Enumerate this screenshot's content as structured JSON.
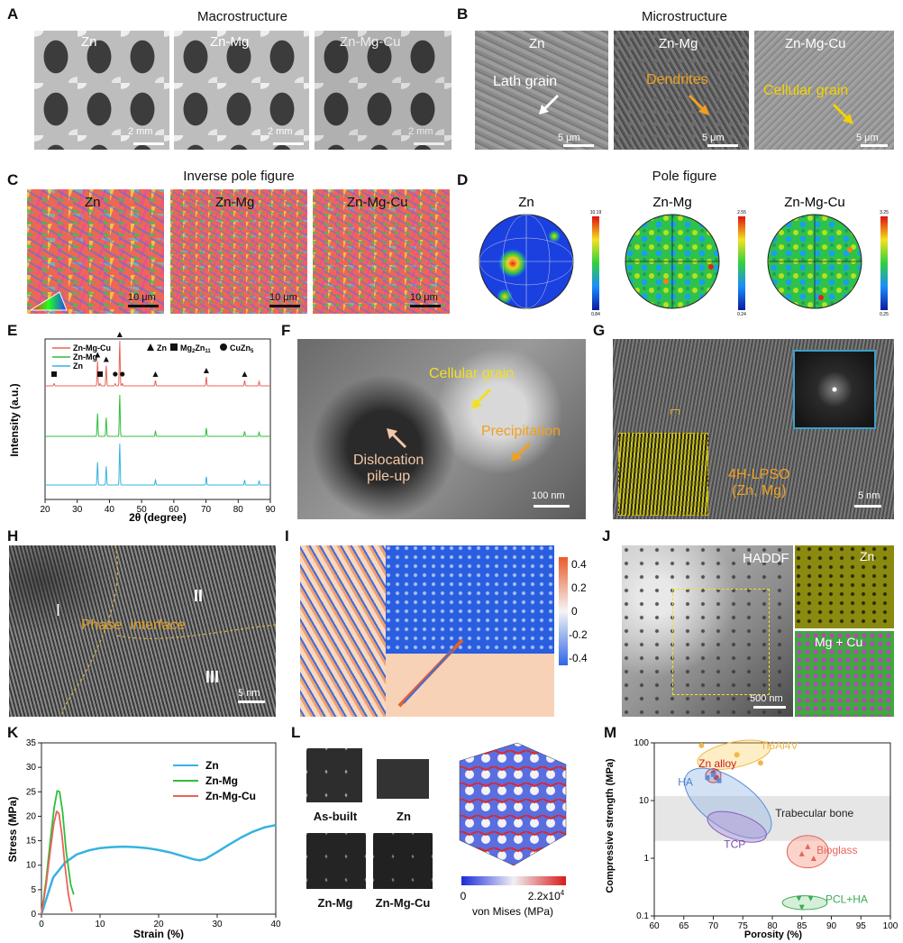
{
  "panels": {
    "A": {
      "label": "A",
      "title": "Macrostructure",
      "images": [
        {
          "name": "Zn",
          "scale": "2 mm"
        },
        {
          "name": "Zn-Mg",
          "scale": "2 mm"
        },
        {
          "name": "Zn-Mg-Cu",
          "scale": "2 mm"
        }
      ]
    },
    "B": {
      "label": "B",
      "title": "Microstructure",
      "images": [
        {
          "name": "Zn",
          "scale": "5 μm",
          "annotation": "Lath grain",
          "color": "#ffffff"
        },
        {
          "name": "Zn-Mg",
          "scale": "5 μm",
          "annotation": "Dendrites",
          "color": "#f0a020"
        },
        {
          "name": "Zn-Mg-Cu",
          "scale": "5 μm",
          "annotation": "Cellular grain",
          "color": "#f2d200"
        }
      ]
    },
    "C": {
      "label": "C",
      "title": "Inverse pole figure",
      "images": [
        {
          "name": "Zn",
          "scale": "10 μm"
        },
        {
          "name": "Zn-Mg",
          "scale": "10 μm"
        },
        {
          "name": "Zn-Mg-Cu",
          "scale": "10 μm"
        }
      ]
    },
    "D": {
      "label": "D",
      "title": "Pole figure",
      "figures": [
        {
          "name": "Zn",
          "max": "10.19",
          "min": "0.84"
        },
        {
          "name": "Zn-Mg",
          "max": "2.55",
          "min": "0.24"
        },
        {
          "name": "Zn-Mg-Cu",
          "max": "3.25",
          "min": "0.25"
        }
      ]
    },
    "E": {
      "label": "E"
    },
    "F": {
      "label": "F",
      "annotations": {
        "cellular": "Cellular grain",
        "precip": "Precipitation",
        "disloc1": "Dislocation",
        "disloc2": "pile-up"
      },
      "scale": "100 nm"
    },
    "G": {
      "label": "G",
      "annotation1": "4H-LPSO",
      "annotation2": "(Zn, Mg)",
      "scale": "5 nm"
    },
    "H": {
      "label": "H",
      "region1": "I",
      "region2": "II",
      "region3": "III",
      "interface": "Phase  interface",
      "scale": "5 nm"
    },
    "I": {
      "label": "I",
      "colorbar_ticks": [
        "0.4",
        "0.2",
        "0",
        "-0.2",
        "-0.4"
      ]
    },
    "J": {
      "label": "J",
      "haddf": "HADDF",
      "zn": "Zn",
      "mgcu": "Mg + Cu",
      "scale": "500 nm"
    },
    "K": {
      "label": "K"
    },
    "L": {
      "label": "L",
      "asbuilt": "As-built",
      "zn": "Zn",
      "znmg": "Zn-Mg",
      "znmgcu": "Zn-Mg-Cu",
      "cbar_min": "0",
      "cbar_max": "2.2x10",
      "cbar_exp": "4",
      "cbar_label": "von Mises (MPa)"
    },
    "M": {
      "label": "M",
      "trabecular": "Trabecular bone"
    }
  },
  "chart_data": [
    {
      "id": "E",
      "type": "line",
      "xlabel": "2θ (degree)",
      "ylabel": "Intensity (a.u.)",
      "xlim": [
        20,
        90
      ],
      "xticks": [
        20,
        30,
        40,
        50,
        60,
        70,
        80,
        90
      ],
      "legend": [
        {
          "name": "Zn-Mg-Cu",
          "color": "#e8645a"
        },
        {
          "name": "Zn-Mg",
          "color": "#2fbf3a"
        },
        {
          "name": "Zn",
          "color": "#36b3e0"
        }
      ],
      "marker_legend": [
        {
          "symbol": "triangle",
          "label": "Zn"
        },
        {
          "symbol": "square",
          "label": "Mg",
          "sub": "2",
          "label2": "Zn",
          "sub2": "11"
        },
        {
          "symbol": "circle",
          "label": "CuZn",
          "sub": "5"
        }
      ],
      "peaks": [
        36.3,
        39.0,
        43.2,
        54.3,
        70.1,
        82.0,
        86.5
      ],
      "peak_heights": [
        0.55,
        0.45,
        1.0,
        0.12,
        0.2,
        0.12,
        0.1
      ],
      "markers": [
        {
          "x": 22.8,
          "s": "square"
        },
        {
          "x": 36.3,
          "s": "triangle"
        },
        {
          "x": 37.1,
          "s": "square"
        },
        {
          "x": 39.0,
          "s": "triangle"
        },
        {
          "x": 41.8,
          "s": "circle"
        },
        {
          "x": 43.2,
          "s": "triangle"
        },
        {
          "x": 44.0,
          "s": "circle"
        },
        {
          "x": 54.3,
          "s": "triangle"
        },
        {
          "x": 70.1,
          "s": "triangle"
        },
        {
          "x": 82.0,
          "s": "triangle"
        }
      ]
    },
    {
      "id": "K",
      "type": "line",
      "xlabel": "Strain (%)",
      "ylabel": "Stress (MPa)",
      "xlim": [
        0,
        40
      ],
      "ylim": [
        0,
        35
      ],
      "xticks": [
        0,
        10,
        20,
        30,
        40
      ],
      "yticks": [
        0,
        5,
        10,
        15,
        20,
        25,
        30,
        35
      ],
      "series": [
        {
          "name": "Zn",
          "color": "#36b3e0",
          "x": [
            0,
            2,
            4,
            6,
            8,
            10,
            12,
            14,
            16,
            18,
            20,
            22,
            24,
            26,
            27,
            28,
            30,
            32,
            34,
            36,
            38,
            40
          ],
          "y": [
            0,
            7.5,
            10.5,
            12.2,
            13.0,
            13.5,
            13.7,
            13.8,
            13.7,
            13.5,
            13.1,
            12.6,
            11.9,
            11.2,
            11.0,
            11.3,
            12.7,
            14.2,
            15.6,
            16.8,
            17.7,
            18.2
          ]
        },
        {
          "name": "Zn-Mg",
          "color": "#2fbf3a",
          "x": [
            0,
            0.8,
            1.6,
            2.2,
            2.7,
            3.1,
            3.6,
            4.2,
            5.0,
            5.5
          ],
          "y": [
            0,
            7,
            16,
            22,
            25.2,
            25,
            21,
            13,
            6,
            4
          ]
        },
        {
          "name": "Zn-Mg-Cu",
          "color": "#e8645a",
          "x": [
            0,
            0.8,
            1.5,
            2.1,
            2.6,
            3.0,
            3.5,
            4.0,
            4.6,
            5.2
          ],
          "y": [
            0,
            6,
            13,
            18.5,
            21,
            20.5,
            16,
            10,
            4,
            0.5
          ]
        }
      ]
    },
    {
      "id": "M",
      "type": "scatter",
      "xlabel": "Porosity (%)",
      "ylabel": "Compressive strength (MPa)",
      "xlim": [
        60,
        100
      ],
      "ylim": [
        0.1,
        100
      ],
      "yscale": "log",
      "xticks": [
        60,
        65,
        70,
        75,
        80,
        85,
        90,
        95,
        100
      ],
      "yticks": [
        0.1,
        1,
        10,
        100
      ],
      "trabecular_band": [
        2,
        12
      ],
      "groups": [
        {
          "name": "Ti6Al4V",
          "color": "#f0b84a",
          "points": [
            [
              68,
              90
            ],
            [
              74,
              62
            ],
            [
              78,
              45
            ]
          ]
        },
        {
          "name": "Zn alloy",
          "color": "#d01c1c",
          "points": [
            [
              70,
              30
            ],
            [
              70.5,
              25
            ]
          ]
        },
        {
          "name": "HA",
          "color": "#5b8fd6",
          "points": [
            [
              69,
              25
            ],
            [
              70,
              28
            ],
            [
              71,
              22
            ]
          ]
        },
        {
          "name": "TCP",
          "color": "#8a5bc0",
          "points": []
        },
        {
          "name": "Bioglass",
          "color": "#e8645a",
          "points": [
            [
              85,
              1.2
            ],
            [
              86,
              1.6
            ],
            [
              87,
              1.0
            ]
          ]
        },
        {
          "name": "PCL+HA",
          "color": "#3caa55",
          "points": [
            [
              84.5,
              0.2
            ],
            [
              85,
              0.14
            ],
            [
              86.5,
              0.2
            ]
          ]
        }
      ]
    }
  ]
}
